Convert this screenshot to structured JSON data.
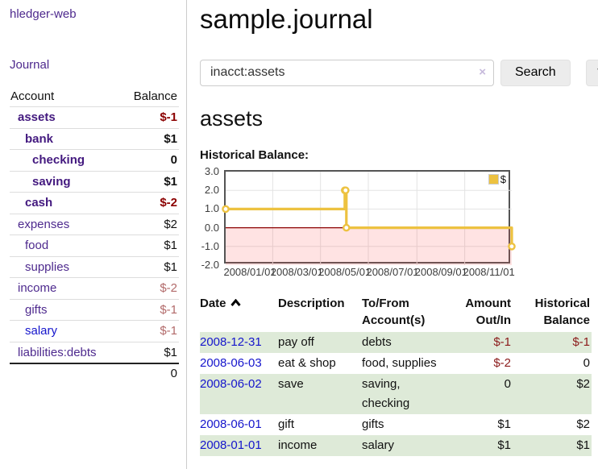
{
  "app_title": "hledger-web",
  "nav": {
    "journal_label": "Journal"
  },
  "sidebar": {
    "headers": {
      "account": "Account",
      "balance": "Balance"
    },
    "accounts": [
      {
        "name": "assets",
        "balance": "$-1",
        "indent": 1,
        "bold": true,
        "neg": "strong"
      },
      {
        "name": "bank",
        "balance": "$1",
        "indent": 2,
        "bold": true,
        "neg": ""
      },
      {
        "name": "checking",
        "balance": "0",
        "indent": 3,
        "bold": true,
        "neg": ""
      },
      {
        "name": "saving",
        "balance": "$1",
        "indent": 3,
        "bold": true,
        "neg": ""
      },
      {
        "name": "cash",
        "balance": "$-2",
        "indent": 2,
        "bold": true,
        "neg": "strong"
      },
      {
        "name": "expenses",
        "balance": "$2",
        "indent": 1,
        "bold": false,
        "neg": ""
      },
      {
        "name": "food",
        "balance": "$1",
        "indent": 2,
        "bold": false,
        "neg": ""
      },
      {
        "name": "supplies",
        "balance": "$1",
        "indent": 2,
        "bold": false,
        "neg": ""
      },
      {
        "name": "income",
        "balance": "$-2",
        "indent": 1,
        "bold": false,
        "neg": "pale"
      },
      {
        "name": "gifts",
        "balance": "$-1",
        "indent": 2,
        "bold": false,
        "neg": "pale"
      },
      {
        "name": "salary",
        "balance": "$-1",
        "indent": 2,
        "bold": false,
        "neg": "pale",
        "link_color": "blue"
      },
      {
        "name": "liabilities:debts",
        "balance": "$1",
        "indent": 1,
        "bold": false,
        "neg": ""
      }
    ],
    "total": "0"
  },
  "main": {
    "title": "sample.journal",
    "search": {
      "value": "inacct:assets",
      "clear_icon": "×",
      "search_button": "Search",
      "help_button": "?"
    },
    "account_heading": "assets",
    "chart_heading": "Historical Balance:"
  },
  "chart_data": {
    "type": "line",
    "step": true,
    "title": "Historical Balance:",
    "legend": [
      {
        "label": "$",
        "color": "#edc240"
      }
    ],
    "legend_position": "top-right",
    "grid": true,
    "x_start": "2008-01-01",
    "x_end": "2008-12-31",
    "points": [
      {
        "date": "2008-01-01",
        "value": 1
      },
      {
        "date": "2008-06-01",
        "value": 2
      },
      {
        "date": "2008-06-02",
        "value": 2
      },
      {
        "date": "2008-06-03",
        "value": 0
      },
      {
        "date": "2008-12-31",
        "value": -1
      }
    ],
    "ylim": [
      -2,
      3
    ],
    "yticks": [
      "3.0",
      "2.0",
      "1.0",
      "0.0",
      "-1.0",
      "-2.0"
    ],
    "xticks": [
      "2008/01/01",
      "2008/03/01",
      "2008/05/01",
      "2008/07/01",
      "2008/09/01",
      "2008/11/01"
    ],
    "series_color": "#edc240",
    "negative_fill": "rgba(255,80,80,0.16)",
    "zero_line_color": "#8b0000",
    "grid_color": "#e3e3e3"
  },
  "register": {
    "headers": {
      "date": "Date",
      "description": "Description",
      "accounts": "To/From Account(s)",
      "amount": "Amount Out/In",
      "balance": "Historical Balance"
    },
    "rows": [
      {
        "date": "2008-12-31",
        "description": "pay off",
        "accounts": "debts",
        "amount": "$-1",
        "amount_neg": true,
        "balance": "$-1",
        "balance_neg": true,
        "shaded": true
      },
      {
        "date": "2008-06-03",
        "description": "eat & shop",
        "accounts": "food, supplies",
        "amount": "$-2",
        "amount_neg": true,
        "balance": "0",
        "balance_neg": false,
        "shaded": false
      },
      {
        "date": "2008-06-02",
        "description": "save",
        "accounts": "saving, checking",
        "amount": "0",
        "amount_neg": false,
        "balance": "$2",
        "balance_neg": false,
        "shaded": true
      },
      {
        "date": "2008-06-01",
        "description": "gift",
        "accounts": "gifts",
        "amount": "$1",
        "amount_neg": false,
        "balance": "$2",
        "balance_neg": false,
        "shaded": false
      },
      {
        "date": "2008-01-01",
        "description": "income",
        "accounts": "salary",
        "amount": "$1",
        "amount_neg": false,
        "balance": "$1",
        "balance_neg": false,
        "shaded": true
      }
    ]
  },
  "colors": {
    "link_purple": "#4e2a8e",
    "link_blue": "#1515cc",
    "negative_strong": "#8b0000",
    "negative_pale": "#b26a6a",
    "negative_register": "#8b1a1a",
    "row_green": "#deead8",
    "series_gold": "#edc240"
  }
}
